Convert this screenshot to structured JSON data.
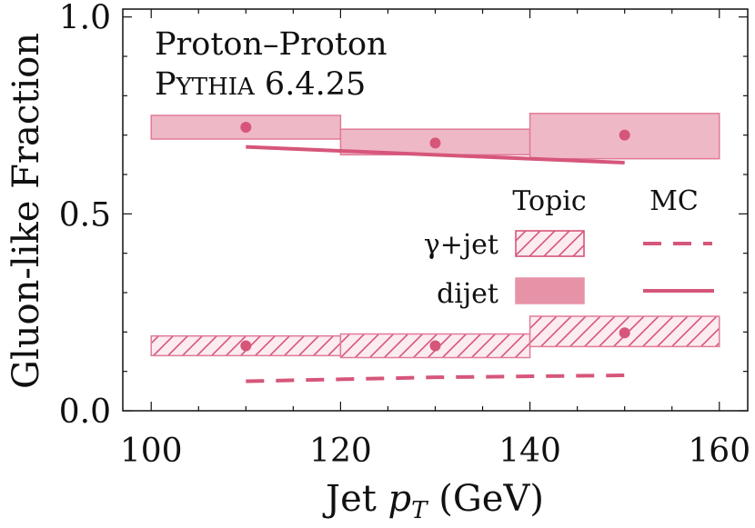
{
  "chart_data": {
    "type": "line",
    "xlabel_main": "Jet ",
    "xlabel_var": "p",
    "xlabel_sub": "T",
    "xlabel_unit": " (GeV)",
    "ylabel": "Gluon-like Fraction",
    "xlim": [
      97,
      163
    ],
    "ylim": [
      0.0,
      1.02
    ],
    "xticks": [
      100,
      120,
      140,
      160
    ],
    "yticks": [
      0.0,
      0.5,
      1.0
    ],
    "xtick_labels": [
      "100",
      "120",
      "140",
      "160"
    ],
    "ytick_labels": [
      "0.0",
      "0.5",
      "1.0"
    ],
    "annotation_line1": "Proton–Proton",
    "annotation_line2_cap": "P",
    "annotation_line2_sc": "YTHIA",
    "annotation_line2_rest": " 6.4.25",
    "legend": {
      "placement": "center-right",
      "col_topic": "Topic",
      "col_mc": "MC",
      "rows": [
        "γ+jet",
        "dijet"
      ]
    },
    "colors": {
      "accent": "#d6567a",
      "fill_dijet": "#efb8c6",
      "fill_gamma": "#fcebf0",
      "band_edge": "#e07b98"
    },
    "series": [
      {
        "name": "dijet",
        "topic_points": {
          "x": [
            110,
            130,
            150
          ],
          "y": [
            0.72,
            0.68,
            0.7
          ]
        },
        "topic_bands": [
          {
            "x0": 100,
            "x1": 120,
            "lo": 0.69,
            "hi": 0.75
          },
          {
            "x0": 120,
            "x1": 140,
            "lo": 0.65,
            "hi": 0.715
          },
          {
            "x0": 140,
            "x1": 160,
            "lo": 0.64,
            "hi": 0.755
          }
        ],
        "mc_line": {
          "x": [
            110,
            130,
            150
          ],
          "y": [
            0.67,
            0.65,
            0.63
          ],
          "style": "solid"
        }
      },
      {
        "name": "γ+jet",
        "topic_points": {
          "x": [
            110,
            130,
            150
          ],
          "y": [
            0.165,
            0.165,
            0.198
          ]
        },
        "topic_bands": [
          {
            "x0": 100,
            "x1": 120,
            "lo": 0.14,
            "hi": 0.19
          },
          {
            "x0": 120,
            "x1": 140,
            "lo": 0.135,
            "hi": 0.195
          },
          {
            "x0": 140,
            "x1": 160,
            "lo": 0.163,
            "hi": 0.24
          }
        ],
        "mc_line": {
          "x": [
            110,
            130,
            150
          ],
          "y": [
            0.075,
            0.085,
            0.09
          ],
          "style": "dashed"
        }
      }
    ]
  }
}
